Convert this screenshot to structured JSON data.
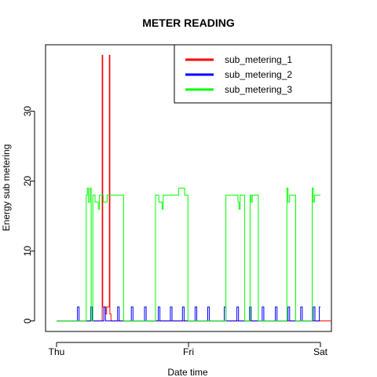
{
  "chart_data": {
    "type": "line",
    "title": "METER READING",
    "xlabel": "Date time",
    "ylabel": "Energy sub metering",
    "x_tick_labels": [
      "Thu",
      "Fri",
      "Sat"
    ],
    "x_ticks_hours": [
      0,
      24,
      48
    ],
    "y_ticks": [
      0,
      10,
      20,
      30
    ],
    "xlim_hours": [
      -2,
      50
    ],
    "ylim": [
      -1.5,
      39.5
    ],
    "legend_position": "top-right",
    "grid": false,
    "series": [
      {
        "name": "sub_metering_1",
        "color": "#ff0000",
        "step": true,
        "points": [
          [
            0,
            0
          ],
          [
            8.3,
            0
          ],
          [
            8.3,
            38
          ],
          [
            8.4,
            38
          ],
          [
            8.4,
            2
          ],
          [
            8.9,
            2
          ],
          [
            8.9,
            1
          ],
          [
            9.1,
            1
          ],
          [
            9.1,
            2
          ],
          [
            9.6,
            2
          ],
          [
            9.6,
            38
          ],
          [
            9.7,
            38
          ],
          [
            9.7,
            1
          ],
          [
            9.9,
            1
          ],
          [
            9.9,
            0
          ],
          [
            50,
            0
          ]
        ]
      },
      {
        "name": "sub_metering_2",
        "color": "#0000ff",
        "step": true,
        "points": [
          [
            0,
            0
          ],
          [
            3.8,
            0
          ],
          [
            3.8,
            2
          ],
          [
            4.1,
            2
          ],
          [
            4.1,
            0
          ],
          [
            6.2,
            0
          ],
          [
            6.2,
            2
          ],
          [
            6.5,
            2
          ],
          [
            6.5,
            0
          ],
          [
            8.6,
            0
          ],
          [
            8.6,
            2
          ],
          [
            8.9,
            2
          ],
          [
            8.9,
            0
          ],
          [
            11.1,
            0
          ],
          [
            11.1,
            2
          ],
          [
            11.4,
            2
          ],
          [
            11.4,
            0
          ],
          [
            13.6,
            0
          ],
          [
            13.6,
            2
          ],
          [
            13.9,
            2
          ],
          [
            13.9,
            0
          ],
          [
            16,
            0
          ],
          [
            16,
            2
          ],
          [
            16.3,
            2
          ],
          [
            16.3,
            0
          ],
          [
            18.5,
            0
          ],
          [
            18.5,
            2
          ],
          [
            18.8,
            2
          ],
          [
            18.8,
            0
          ],
          [
            20.7,
            0
          ],
          [
            20.7,
            2
          ],
          [
            21,
            2
          ],
          [
            21,
            0
          ],
          [
            22.9,
            0
          ],
          [
            22.9,
            2
          ],
          [
            23.2,
            2
          ],
          [
            23.2,
            0
          ],
          [
            25.2,
            0
          ],
          [
            25.2,
            2
          ],
          [
            25.5,
            2
          ],
          [
            25.5,
            0
          ],
          [
            27.5,
            0
          ],
          [
            27.5,
            2
          ],
          [
            27.8,
            2
          ],
          [
            27.8,
            0
          ],
          [
            30.5,
            0
          ],
          [
            30.5,
            2
          ],
          [
            30.8,
            2
          ],
          [
            30.8,
            0
          ],
          [
            32.8,
            0
          ],
          [
            32.8,
            2
          ],
          [
            33.1,
            2
          ],
          [
            33.1,
            0
          ],
          [
            35.1,
            0
          ],
          [
            35.1,
            2
          ],
          [
            35.4,
            2
          ],
          [
            35.4,
            0
          ],
          [
            37.4,
            0
          ],
          [
            37.4,
            2
          ],
          [
            37.7,
            2
          ],
          [
            37.7,
            0
          ],
          [
            39.8,
            0
          ],
          [
            39.8,
            2
          ],
          [
            40.1,
            2
          ],
          [
            40.1,
            0
          ],
          [
            42.1,
            0
          ],
          [
            42.1,
            2
          ],
          [
            42.4,
            2
          ],
          [
            42.4,
            0
          ],
          [
            44.4,
            0
          ],
          [
            44.4,
            2
          ],
          [
            44.7,
            2
          ],
          [
            44.7,
            0
          ],
          [
            46.7,
            0
          ],
          [
            46.7,
            2
          ],
          [
            47,
            2
          ],
          [
            47,
            0
          ],
          [
            47.8,
            0
          ],
          [
            47.8,
            2
          ],
          [
            48,
            2
          ]
        ]
      },
      {
        "name": "sub_metering_3",
        "color": "#00ff00",
        "step": true,
        "points": [
          [
            0,
            0
          ],
          [
            5.4,
            0
          ],
          [
            5.4,
            18
          ],
          [
            5.6,
            18
          ],
          [
            5.6,
            19
          ],
          [
            5.8,
            19
          ],
          [
            5.8,
            17
          ],
          [
            6.1,
            17
          ],
          [
            6.1,
            19
          ],
          [
            6.3,
            19
          ],
          [
            6.3,
            0
          ],
          [
            6.6,
            0
          ],
          [
            6.6,
            18
          ],
          [
            7,
            18
          ],
          [
            7,
            17
          ],
          [
            7.6,
            17
          ],
          [
            7.6,
            16
          ],
          [
            7.8,
            16
          ],
          [
            7.8,
            18
          ],
          [
            8.5,
            18
          ],
          [
            8.5,
            17
          ],
          [
            9.2,
            17
          ],
          [
            9.2,
            18
          ],
          [
            12.2,
            18
          ],
          [
            12.2,
            0
          ],
          [
            18,
            0
          ],
          [
            18,
            18
          ],
          [
            18.6,
            18
          ],
          [
            18.6,
            17
          ],
          [
            19.2,
            17
          ],
          [
            19.2,
            16
          ],
          [
            19.4,
            16
          ],
          [
            19.4,
            18
          ],
          [
            22.2,
            18
          ],
          [
            22.2,
            19
          ],
          [
            23.3,
            19
          ],
          [
            23.3,
            18
          ],
          [
            23.9,
            18
          ],
          [
            23.9,
            0
          ],
          [
            30.8,
            0
          ],
          [
            30.8,
            18
          ],
          [
            33,
            18
          ],
          [
            33,
            17
          ],
          [
            33.2,
            17
          ],
          [
            33.2,
            16
          ],
          [
            33.4,
            16
          ],
          [
            33.4,
            18
          ],
          [
            34.2,
            18
          ],
          [
            34.2,
            0
          ],
          [
            35.2,
            0
          ],
          [
            35.2,
            18
          ],
          [
            35.4,
            18
          ],
          [
            35.4,
            17
          ],
          [
            35.6,
            17
          ],
          [
            35.6,
            18
          ],
          [
            36.7,
            18
          ],
          [
            36.7,
            0
          ],
          [
            41.9,
            0
          ],
          [
            41.9,
            19
          ],
          [
            42.1,
            19
          ],
          [
            42.1,
            17
          ],
          [
            42.4,
            17
          ],
          [
            42.4,
            18
          ],
          [
            43.5,
            18
          ],
          [
            43.5,
            0
          ],
          [
            46.5,
            0
          ],
          [
            46.5,
            19
          ],
          [
            46.7,
            19
          ],
          [
            46.7,
            17
          ],
          [
            46.9,
            17
          ],
          [
            46.9,
            18
          ],
          [
            48,
            18
          ]
        ]
      }
    ]
  }
}
